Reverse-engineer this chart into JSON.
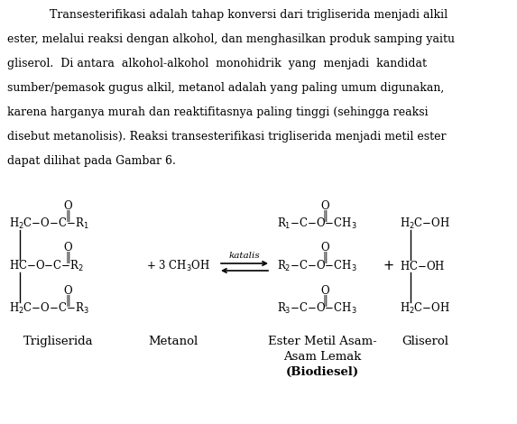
{
  "background_color": "#ffffff",
  "text_color": "#000000",
  "lines": [
    "Transesterifikasi adalah tahap konversi dari trigliserida menjadi alkil",
    "ester, melalui reaksi dengan alkohol, dan menghasilkan produk samping yaitu",
    "gliserol.  Di antara  alkohol-alkohol  monohidrik  yang  menjadi  kandidat",
    "sumber/pemasok gugus alkil, metanol adalah yang paling umum digunakan,",
    "karena harganya murah dan reaktifitasnya paling tinggi (sehingga reaksi",
    "disebut metanolisis). Reaksi transesterifikasi trigliserida menjadi metil ester",
    "dapat dilihat pada Gambar 6."
  ],
  "label_trigliserida": "Trigliserida",
  "label_metanol": "Metanol",
  "label_ester_line1": "Ester Metil Asam-",
  "label_ester_line2": "Asam Lemak",
  "label_ester_line3": "(Biodiesel)",
  "label_gliserol": "Gliserol",
  "katalis": "katalis",
  "font_size_text": 9.0,
  "font_size_chem": 8.5,
  "font_size_label": 9.5
}
